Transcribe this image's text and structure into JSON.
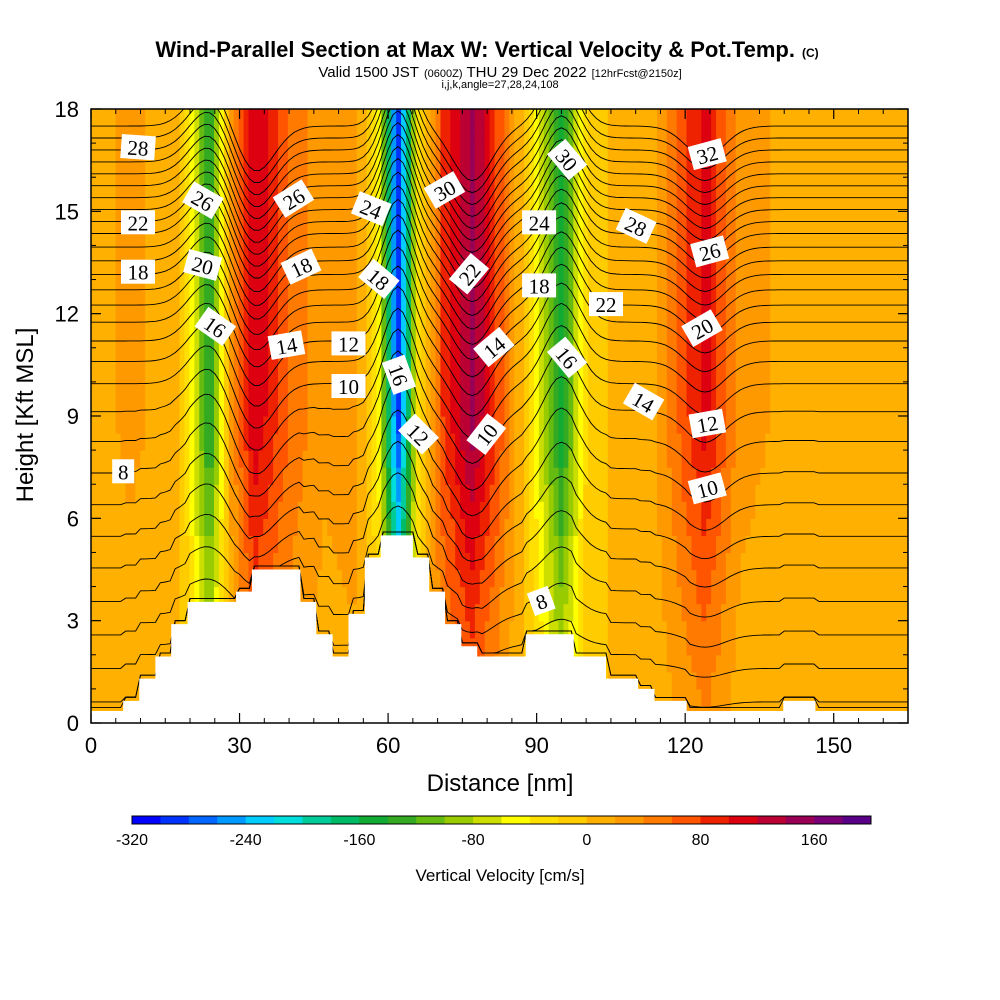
{
  "chart_data": {
    "type": "heatmap",
    "title": "Wind-Parallel Section at Max W: Vertical Velocity & Pot.Temp.",
    "title_mark": "(C)",
    "subtitle_parts": [
      "Valid 1500 JST",
      "(0600Z)",
      "THU 29 Dec 2022",
      "[12hrFcst@2150z]"
    ],
    "subtitle2": "i,j,k,angle=27,28,24,108",
    "xlabel": "Distance [nm]",
    "ylabel": "Height [Kft MSL]",
    "xlim": [
      0,
      165
    ],
    "ylim": [
      0,
      18
    ],
    "xticks": [
      0,
      30,
      60,
      90,
      120,
      150
    ],
    "yticks": [
      0,
      3,
      6,
      9,
      12,
      15,
      18
    ],
    "colorbar": {
      "label": "Vertical Velocity [cm/s]",
      "range": [
        -320,
        200
      ],
      "ticks": [
        -320,
        -240,
        -160,
        -80,
        0,
        80,
        160
      ],
      "colors": [
        "#0000ff",
        "#0033ff",
        "#0066ff",
        "#0099ff",
        "#00ccff",
        "#00dddd",
        "#00cc99",
        "#00bb66",
        "#11aa33",
        "#33aa22",
        "#66bb11",
        "#99cc00",
        "#ccdd00",
        "#ffff00",
        "#ffe000",
        "#ffcc00",
        "#ffb000",
        "#ff9900",
        "#ff7a00",
        "#ff5500",
        "#ee2200",
        "#dd0011",
        "#bb0033",
        "#990055",
        "#7a0077",
        "#5a0088"
      ]
    },
    "vertical_velocity_columns": [
      {
        "x": 2,
        "w": 15
      },
      {
        "x": 8,
        "w": 25
      },
      {
        "x": 18,
        "w": 10
      },
      {
        "x": 24,
        "w": -150
      },
      {
        "x": 28,
        "w": 20
      },
      {
        "x": 33,
        "w": 120
      },
      {
        "x": 40,
        "w": 60
      },
      {
        "x": 47,
        "w": 25
      },
      {
        "x": 53,
        "w": 35
      },
      {
        "x": 58,
        "w": -40
      },
      {
        "x": 62,
        "w": -300
      },
      {
        "x": 66,
        "w": -40
      },
      {
        "x": 71,
        "w": 80
      },
      {
        "x": 77,
        "w": 150
      },
      {
        "x": 84,
        "w": 50
      },
      {
        "x": 89,
        "w": -30
      },
      {
        "x": 95,
        "w": -160
      },
      {
        "x": 100,
        "w": -20
      },
      {
        "x": 106,
        "w": 10
      },
      {
        "x": 114,
        "w": 20
      },
      {
        "x": 124,
        "w": 110
      },
      {
        "x": 131,
        "w": 30
      },
      {
        "x": 140,
        "w": 15
      },
      {
        "x": 150,
        "w": 10
      },
      {
        "x": 163,
        "w": 15
      }
    ],
    "terrain_top": [
      {
        "x0": 0,
        "x1": 6.5,
        "h": 0.35
      },
      {
        "x0": 6.5,
        "x1": 9.75,
        "h": 0.65
      },
      {
        "x0": 9.75,
        "x1": 13,
        "h": 1.3
      },
      {
        "x0": 13,
        "x1": 16.2,
        "h": 1.95
      },
      {
        "x0": 16.2,
        "x1": 19.5,
        "h": 2.9
      },
      {
        "x0": 19.5,
        "x1": 29.3,
        "h": 3.55
      },
      {
        "x0": 29.3,
        "x1": 32.5,
        "h": 3.85
      },
      {
        "x0": 32.5,
        "x1": 42.3,
        "h": 4.5
      },
      {
        "x0": 42.3,
        "x1": 45.5,
        "h": 3.55
      },
      {
        "x0": 45.5,
        "x1": 48.8,
        "h": 2.6
      },
      {
        "x0": 48.8,
        "x1": 52,
        "h": 1.95
      },
      {
        "x0": 52,
        "x1": 55.3,
        "h": 3.2
      },
      {
        "x0": 55.3,
        "x1": 58.5,
        "h": 4.85
      },
      {
        "x0": 58.5,
        "x1": 65,
        "h": 5.5
      },
      {
        "x0": 65,
        "x1": 68.3,
        "h": 4.85
      },
      {
        "x0": 68.3,
        "x1": 71.5,
        "h": 3.85
      },
      {
        "x0": 71.5,
        "x1": 74.8,
        "h": 2.9
      },
      {
        "x0": 74.8,
        "x1": 78,
        "h": 2.25
      },
      {
        "x0": 78,
        "x1": 87.8,
        "h": 1.95
      },
      {
        "x0": 87.8,
        "x1": 97.5,
        "h": 2.6
      },
      {
        "x0": 97.5,
        "x1": 104,
        "h": 1.95
      },
      {
        "x0": 104,
        "x1": 110.5,
        "h": 1.3
      },
      {
        "x0": 110.5,
        "x1": 113.8,
        "h": 1.0
      },
      {
        "x0": 113.8,
        "x1": 120.3,
        "h": 0.65
      },
      {
        "x0": 120.3,
        "x1": 139.8,
        "h": 0.35
      },
      {
        "x0": 139.8,
        "x1": 146.3,
        "h": 0.65
      },
      {
        "x0": 146.3,
        "x1": 165,
        "h": 0.35
      }
    ],
    "isentrope_base_heights": [
      0.55,
      1.4,
      2.3,
      3.2,
      4.1,
      5.0,
      5.85,
      6.7,
      7.55,
      8.4,
      9.2,
      9.95,
      10.6,
      11.2,
      11.75,
      12.25,
      12.7,
      13.15,
      13.55,
      13.95,
      14.35,
      14.7,
      15.05,
      15.4,
      15.75,
      16.1,
      16.45,
      16.8,
      17.15,
      17.5
    ],
    "contour_labels": [
      {
        "t": "28",
        "x": 9.5,
        "y": 16.85,
        "r": 4
      },
      {
        "t": "26",
        "x": 22.5,
        "y": 15.3,
        "r": 30
      },
      {
        "t": "22",
        "x": 9.5,
        "y": 14.65,
        "r": 0
      },
      {
        "t": "20",
        "x": 22.5,
        "y": 13.4,
        "r": 15
      },
      {
        "t": "18",
        "x": 9.5,
        "y": 13.2,
        "r": 0
      },
      {
        "t": "16",
        "x": 25,
        "y": 11.6,
        "r": 35
      },
      {
        "t": "26",
        "x": 41,
        "y": 15.35,
        "r": -32
      },
      {
        "t": "18",
        "x": 42.5,
        "y": 13.35,
        "r": -25
      },
      {
        "t": "14",
        "x": 39.5,
        "y": 11.05,
        "r": -10
      },
      {
        "t": "24",
        "x": 56.5,
        "y": 15.05,
        "r": 22
      },
      {
        "t": "18",
        "x": 58,
        "y": 13.0,
        "r": 40
      },
      {
        "t": "12",
        "x": 52,
        "y": 11.1,
        "r": 0
      },
      {
        "t": "10",
        "x": 52,
        "y": 9.85,
        "r": 0
      },
      {
        "t": "16",
        "x": 62,
        "y": 10.2,
        "r": 70
      },
      {
        "t": "12",
        "x": 66,
        "y": 8.45,
        "r": 45
      },
      {
        "t": "30",
        "x": 71.5,
        "y": 15.6,
        "r": -30
      },
      {
        "t": "22",
        "x": 76.5,
        "y": 13.15,
        "r": -50
      },
      {
        "t": "14",
        "x": 81.5,
        "y": 11.0,
        "r": -40
      },
      {
        "t": "10",
        "x": 80,
        "y": 8.45,
        "r": -52
      },
      {
        "t": "24",
        "x": 90.5,
        "y": 14.65,
        "r": 0
      },
      {
        "t": "18",
        "x": 90.5,
        "y": 12.8,
        "r": 0
      },
      {
        "t": "30",
        "x": 96,
        "y": 16.5,
        "r": 50
      },
      {
        "t": "16",
        "x": 96,
        "y": 10.7,
        "r": 50
      },
      {
        "t": "8",
        "x": 91,
        "y": 3.55,
        "r": -20
      },
      {
        "t": "22",
        "x": 104,
        "y": 12.25,
        "r": 0
      },
      {
        "t": "28",
        "x": 110,
        "y": 14.55,
        "r": 25
      },
      {
        "t": "14",
        "x": 111.5,
        "y": 9.4,
        "r": 30
      },
      {
        "t": "32",
        "x": 124.5,
        "y": 16.65,
        "r": -15
      },
      {
        "t": "26",
        "x": 125,
        "y": 13.8,
        "r": -15
      },
      {
        "t": "20",
        "x": 123.5,
        "y": 11.55,
        "r": -30
      },
      {
        "t": "12",
        "x": 124.5,
        "y": 8.75,
        "r": -10
      },
      {
        "t": "10",
        "x": 124.5,
        "y": 6.85,
        "r": -15
      },
      {
        "t": "8",
        "x": 6.5,
        "y": 7.35,
        "r": 0
      }
    ]
  }
}
